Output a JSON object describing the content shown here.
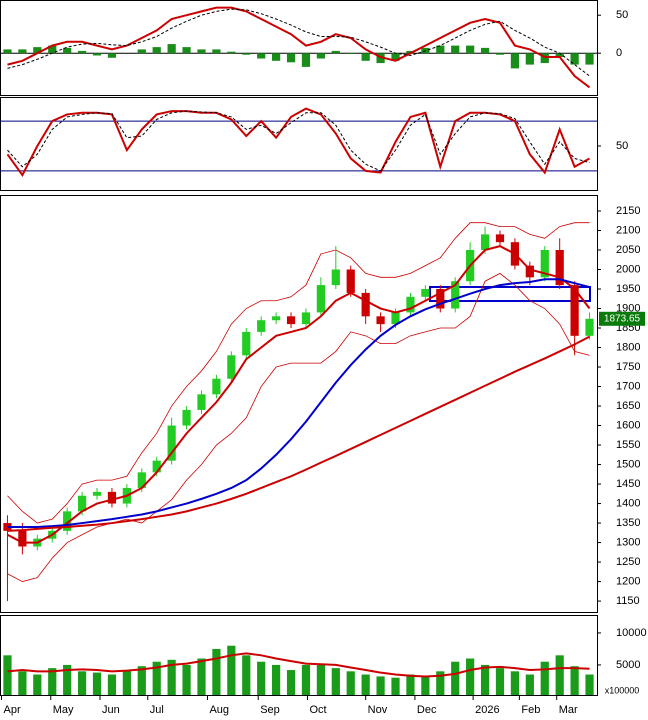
{
  "chart_data": [
    {
      "type": "macd",
      "ylim": [
        -55,
        70
      ],
      "yticks": [
        0,
        50
      ],
      "series": [
        {
          "color": "#cc0000",
          "values": [
            -15,
            -10,
            0,
            10,
            15,
            15,
            10,
            5,
            10,
            20,
            30,
            45,
            50,
            55,
            60,
            60,
            55,
            45,
            35,
            25,
            10,
            15,
            25,
            20,
            5,
            -5,
            -10,
            0,
            10,
            20,
            30,
            40,
            45,
            40,
            10,
            5,
            -5,
            -5,
            -30,
            -45
          ]
        },
        {
          "color": "#000000",
          "dash": true,
          "values": [
            -20,
            -15,
            -8,
            0,
            8,
            12,
            13,
            11,
            10,
            15,
            22,
            33,
            42,
            50,
            55,
            58,
            57,
            52,
            45,
            37,
            28,
            22,
            22,
            21,
            15,
            8,
            0,
            -3,
            3,
            10,
            20,
            30,
            38,
            42,
            30,
            20,
            8,
            0,
            -15,
            -30
          ]
        }
      ],
      "histogram": {
        "color": "#1a8c1a",
        "values": [
          5,
          5,
          8,
          10,
          7,
          3,
          -3,
          -6,
          0,
          5,
          8,
          12,
          8,
          5,
          5,
          2,
          -2,
          -7,
          -10,
          -12,
          -18,
          -7,
          3,
          -1,
          -10,
          -13,
          -10,
          3,
          7,
          10,
          10,
          10,
          7,
          -2,
          -20,
          -15,
          -13,
          -5,
          -15,
          -15
        ]
      }
    },
    {
      "type": "line",
      "ylim": [
        -3,
        109
      ],
      "yticks": [
        50
      ],
      "hlines": [
        80,
        20
      ],
      "hline_color": "#000080",
      "series": [
        {
          "color": "#cc0000",
          "values": [
            40,
            15,
            50,
            80,
            88,
            90,
            90,
            88,
            45,
            70,
            88,
            92,
            92,
            90,
            90,
            82,
            62,
            80,
            60,
            85,
            95,
            88,
            65,
            35,
            20,
            18,
            55,
            85,
            90,
            25,
            80,
            90,
            90,
            88,
            80,
            40,
            18,
            70,
            25,
            35
          ]
        },
        {
          "color": "#000000",
          "dash": true,
          "values": [
            45,
            25,
            40,
            70,
            85,
            88,
            90,
            89,
            60,
            62,
            82,
            90,
            92,
            91,
            90,
            85,
            70,
            75,
            65,
            78,
            90,
            90,
            75,
            45,
            28,
            20,
            45,
            75,
            88,
            40,
            65,
            85,
            90,
            89,
            83,
            55,
            28,
            55,
            35,
            30
          ]
        }
      ]
    },
    {
      "type": "candlestick",
      "ylim": [
        1122,
        2191
      ],
      "yticks": [
        1150,
        1200,
        1250,
        1300,
        1350,
        1400,
        1450,
        1500,
        1550,
        1600,
        1650,
        1700,
        1750,
        1800,
        1850,
        1900,
        1950,
        2000,
        2050,
        2100,
        2150
      ],
      "up_color": "#22cc22",
      "down_color": "#cc0000",
      "open": [
        1350,
        1330,
        1290,
        1310,
        1330,
        1380,
        1420,
        1430,
        1400,
        1440,
        1480,
        1510,
        1600,
        1640,
        1680,
        1720,
        1780,
        1840,
        1870,
        1880,
        1860,
        1890,
        1960,
        2000,
        1940,
        1880,
        1860,
        1890,
        1930,
        1950,
        1900,
        1970,
        2050,
        2090,
        2070,
        2010,
        1980,
        2050,
        1960,
        1830
      ],
      "high": [
        1370,
        1350,
        1320,
        1340,
        1390,
        1430,
        1440,
        1440,
        1450,
        1490,
        1520,
        1620,
        1650,
        1690,
        1730,
        1790,
        1850,
        1880,
        1890,
        1890,
        1900,
        1980,
        2060,
        2010,
        1950,
        1890,
        1900,
        1940,
        1960,
        1960,
        1980,
        2070,
        2110,
        2100,
        2080,
        2020,
        2060,
        2080,
        1970,
        1890
      ],
      "low": [
        1150,
        1270,
        1280,
        1300,
        1320,
        1370,
        1410,
        1390,
        1390,
        1430,
        1470,
        1500,
        1590,
        1630,
        1670,
        1710,
        1770,
        1830,
        1860,
        1850,
        1850,
        1880,
        1950,
        1930,
        1860,
        1840,
        1850,
        1880,
        1920,
        1890,
        1890,
        1960,
        2040,
        2060,
        2000,
        1960,
        1970,
        1950,
        1780,
        1820
      ],
      "close": [
        1330,
        1290,
        1310,
        1330,
        1380,
        1420,
        1430,
        1400,
        1440,
        1480,
        1510,
        1600,
        1640,
        1680,
        1720,
        1780,
        1840,
        1870,
        1880,
        1860,
        1890,
        1960,
        2000,
        1940,
        1880,
        1860,
        1890,
        1930,
        1950,
        1900,
        1970,
        2050,
        2090,
        2070,
        2010,
        1980,
        2050,
        1960,
        1830,
        1873.65
      ],
      "bands": {
        "color": "#cc0000",
        "upper": [
          1420,
          1380,
          1350,
          1360,
          1400,
          1450,
          1460,
          1460,
          1470,
          1530,
          1580,
          1650,
          1700,
          1740,
          1790,
          1860,
          1900,
          1920,
          1920,
          1930,
          1960,
          2040,
          2050,
          2030,
          1990,
          1980,
          1980,
          1990,
          2010,
          2030,
          2080,
          2120,
          2120,
          2110,
          2110,
          2090,
          2080,
          2110,
          2120,
          2120
        ],
        "lower": [
          1220,
          1200,
          1210,
          1260,
          1300,
          1320,
          1340,
          1350,
          1360,
          1350,
          1380,
          1410,
          1460,
          1500,
          1550,
          1580,
          1620,
          1700,
          1750,
          1760,
          1760,
          1760,
          1790,
          1840,
          1830,
          1810,
          1810,
          1830,
          1840,
          1850,
          1850,
          1880,
          1970,
          1990,
          1960,
          1920,
          1900,
          1860,
          1790,
          1780
        ]
      },
      "series": [
        {
          "color": "#cc0000",
          "values": [
            1320,
            1300,
            1300,
            1320,
            1350,
            1380,
            1400,
            1410,
            1420,
            1440,
            1480,
            1530,
            1580,
            1620,
            1660,
            1710,
            1770,
            1800,
            1830,
            1840,
            1850,
            1880,
            1920,
            1940,
            1920,
            1900,
            1890,
            1900,
            1920,
            1940,
            1960,
            2010,
            2050,
            2060,
            2040,
            2000,
            1990,
            1980,
            1950,
            1900
          ]
        },
        {
          "color": "#0000cc",
          "values": [
            1340,
            1340,
            1340,
            1342,
            1345,
            1350,
            1355,
            1360,
            1366,
            1372,
            1380,
            1390,
            1400,
            1412,
            1425,
            1440,
            1460,
            1490,
            1525,
            1565,
            1610,
            1660,
            1710,
            1755,
            1795,
            1830,
            1858,
            1880,
            1898,
            1912,
            1925,
            1938,
            1950,
            1960,
            1965,
            1968,
            1975,
            1975,
            1965,
            1955
          ]
        },
        {
          "color": "#cc0000",
          "values": [
            1330,
            1332,
            1335,
            1338,
            1340,
            1343,
            1346,
            1350,
            1355,
            1360,
            1366,
            1372,
            1380,
            1390,
            1400,
            1412,
            1425,
            1440,
            1455,
            1470,
            1487,
            1505,
            1522,
            1540,
            1558,
            1576,
            1594,
            1612,
            1630,
            1648,
            1666,
            1684,
            1702,
            1720,
            1738,
            1755,
            1772,
            1790,
            1808,
            1828
          ]
        }
      ]
    },
    {
      "type": "bar",
      "ylim": [
        300,
        12800
      ],
      "yticks": [
        5000,
        10000
      ],
      "y_unit": "x100000",
      "color": "#1a9c1a",
      "values": [
        6500,
        4000,
        3500,
        4500,
        5000,
        4000,
        3800,
        3500,
        4200,
        4800,
        5500,
        5800,
        5000,
        6000,
        7500,
        8000,
        6500,
        5500,
        5000,
        4200,
        5000,
        5200,
        4500,
        4000,
        3500,
        3200,
        3000,
        3500,
        3200,
        4000,
        5500,
        6000,
        5000,
        4500,
        4000,
        3500,
        5500,
        6500,
        4800,
        3500
      ],
      "series": [
        {
          "color": "#cc0000",
          "values": [
            4000,
            4200,
            4000,
            4000,
            4200,
            4300,
            4200,
            4000,
            4100,
            4300,
            4600,
            5000,
            5200,
            5600,
            6000,
            6500,
            6800,
            6500,
            6000,
            5600,
            5200,
            5100,
            5000,
            4600,
            4200,
            3800,
            3500,
            3300,
            3200,
            3300,
            3600,
            4200,
            4600,
            4700,
            4500,
            4200,
            4300,
            4500,
            4500,
            4400
          ]
        }
      ],
      "xlim": [
        0,
        40
      ],
      "xticks": [
        {
          "value": 0.1,
          "label": "Apr"
        },
        {
          "value": 3.4,
          "label": "May"
        },
        {
          "value": 6.7,
          "label": "Jun"
        },
        {
          "value": 9.9,
          "label": "Jul"
        },
        {
          "value": 13.9,
          "label": "Aug"
        },
        {
          "value": 17.3,
          "label": "Sep"
        },
        {
          "value": 20.6,
          "label": "Oct"
        },
        {
          "value": 24.5,
          "label": "Nov"
        },
        {
          "value": 27.8,
          "label": "Dec"
        },
        {
          "value": 31.7,
          "label": "2026"
        },
        {
          "value": 34.8,
          "label": "Feb"
        },
        {
          "value": 37.3,
          "label": "Mar"
        }
      ]
    }
  ]
}
